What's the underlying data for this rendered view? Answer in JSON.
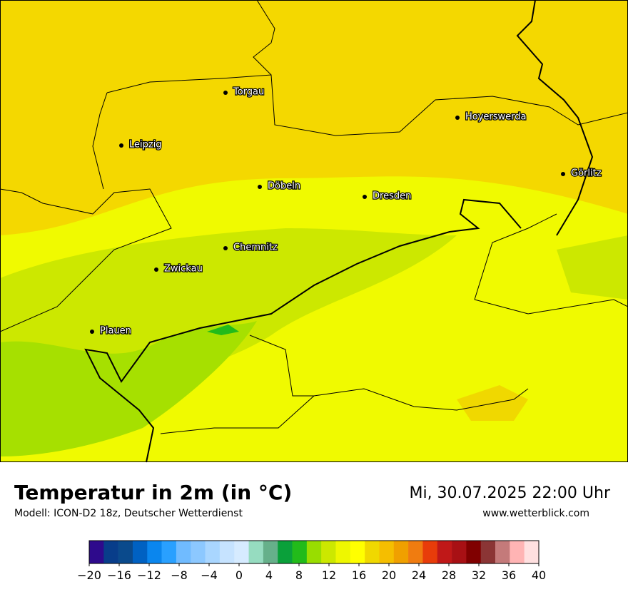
{
  "header": {
    "title": "Temperatur in 2m (in °C)",
    "subtitle": "Modell: ICON-D2 18z, Deutscher Wetterdienst",
    "date": "Mi, 30.07.2025 22:00 Uhr",
    "website": "www.wetterblick.com"
  },
  "cities": [
    "Torgau",
    "Leipzig",
    "Hoyerswerda",
    "Görlitz",
    "Döbeln",
    "Dresden",
    "Chemnitz",
    "Zwickau",
    "Plauen"
  ],
  "legend": {
    "range": [
      -20,
      40
    ],
    "colors": [
      "#2e0a8c",
      "#083d8a",
      "#0a4a8c",
      "#0061c2",
      "#0a86ee",
      "#29a0ff",
      "#70bbff",
      "#8cc8ff",
      "#a9d6ff",
      "#c6e3ff",
      "#d6ebff",
      "#96dcc0",
      "#66b08a",
      "#0aa03a",
      "#22bb1a",
      "#99dd00",
      "#cce800",
      "#eef700",
      "#ffff00",
      "#f0d800",
      "#f5be00",
      "#f0a000",
      "#f07c10",
      "#e83c0a",
      "#c01818",
      "#a81014",
      "#800000",
      "#8b3535",
      "#c47a7a",
      "#ffb4b4",
      "#ffe0e0"
    ],
    "ticks": [
      {
        "value": -20,
        "label": "−20"
      },
      {
        "value": -16,
        "label": "−16"
      },
      {
        "value": -12,
        "label": "−12"
      },
      {
        "value": -8,
        "label": "−8"
      },
      {
        "value": -4,
        "label": "−4"
      },
      0,
      4,
      8,
      12,
      16,
      20,
      24,
      28,
      32,
      36,
      40
    ]
  }
}
